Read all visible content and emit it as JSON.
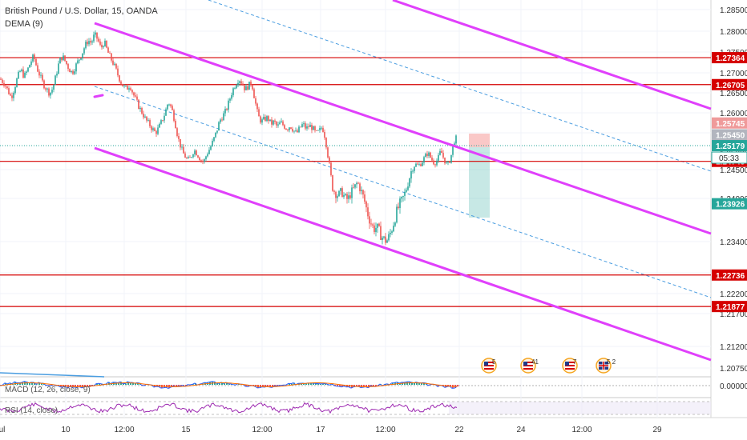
{
  "header": {
    "symbol_title": "British Pound / U.S. Dollar, 15, OANDA",
    "indicator": "DEMA (9)"
  },
  "macd_label": "MACD (12, 26, close, 9)",
  "rsi_label": "RSI (14, close)",
  "countdown": "05:33",
  "macd_zero": "0.00000",
  "colors": {
    "bull": "#26a69a",
    "bear": "#ef5350",
    "channel": "#e040fb",
    "level": "#d50000",
    "midline": "#4a9de0",
    "current": "#26a69a",
    "rsi": "#9c27b0"
  },
  "events": [
    {
      "icon": "us-flag-icon",
      "count": "5"
    },
    {
      "icon": "us-flag-icon",
      "count": "41"
    },
    {
      "icon": "us-flag-icon",
      "count": "7"
    },
    {
      "icon": "uk-flag-icon",
      "count": "5 2"
    }
  ],
  "chart_data": {
    "type": "candlestick",
    "ylim": [
      1.2016,
      1.2905
    ],
    "price_ticks": [
      "1.28500",
      "1.28000",
      "1.27500",
      "1.27000",
      "1.26500",
      "1.26000",
      "1.25500",
      "1.25000",
      "1.24500",
      "1.24000",
      "1.23400",
      "1.22800",
      "1.22200",
      "1.21700",
      "1.21200",
      "1.20750"
    ],
    "time_ticks": [
      "10",
      "12:00",
      "15",
      "12:00",
      "17",
      "12:00",
      "22",
      "24",
      "12:00",
      "29",
      "Jul"
    ],
    "levels": [
      1.27364,
      1.26705,
      1.24745,
      1.22736,
      1.21877
    ],
    "level_labels": [
      "1.27364",
      "1.26705",
      "1.24745",
      "1.22736",
      "1.21877"
    ],
    "current_price": 1.25179,
    "current_label": "1.25179",
    "tag_1_price": 1.25745,
    "tag_1_label": "1.25745",
    "tag_2_price": 1.2545,
    "tag_2_label": "1.25450",
    "target_price": 1.23926,
    "target_label": "1.23926",
    "price_path": [
      [
        0,
        1.2685
      ],
      [
        6,
        1.2672
      ],
      [
        10,
        1.2655
      ],
      [
        14,
        1.2638
      ],
      [
        18,
        1.2662
      ],
      [
        22,
        1.269
      ],
      [
        26,
        1.2708
      ],
      [
        30,
        1.269
      ],
      [
        34,
        1.2705
      ],
      [
        38,
        1.2725
      ],
      [
        42,
        1.274
      ],
      [
        46,
        1.2712
      ],
      [
        50,
        1.2692
      ],
      [
        54,
        1.2672
      ],
      [
        58,
        1.266
      ],
      [
        62,
        1.2648
      ],
      [
        66,
        1.2662
      ],
      [
        70,
        1.2695
      ],
      [
        74,
        1.2728
      ],
      [
        78,
        1.274
      ],
      [
        82,
        1.2725
      ],
      [
        86,
        1.271
      ],
      [
        90,
        1.27
      ],
      [
        94,
        1.2715
      ],
      [
        98,
        1.273
      ],
      [
        102,
        1.2745
      ],
      [
        106,
        1.2765
      ],
      [
        110,
        1.2778
      ],
      [
        114,
        1.2772
      ],
      [
        118,
        1.2792
      ],
      [
        122,
        1.278
      ],
      [
        126,
        1.2758
      ],
      [
        130,
        1.2775
      ],
      [
        134,
        1.2752
      ],
      [
        138,
        1.2735
      ],
      [
        142,
        1.272
      ],
      [
        146,
        1.27
      ],
      [
        150,
        1.268
      ],
      [
        154,
        1.2665
      ],
      [
        158,
        1.266
      ],
      [
        162,
        1.267
      ],
      [
        166,
        1.2648
      ],
      [
        170,
        1.263
      ],
      [
        174,
        1.2612
      ],
      [
        178,
        1.2598
      ],
      [
        182,
        1.2582
      ],
      [
        186,
        1.2572
      ],
      [
        190,
        1.256
      ],
      [
        194,
        1.255
      ],
      [
        198,
        1.2562
      ],
      [
        202,
        1.258
      ],
      [
        206,
        1.26
      ],
      [
        210,
        1.2628
      ],
      [
        214,
        1.2612
      ],
      [
        218,
        1.258
      ],
      [
        222,
        1.2538
      ],
      [
        226,
        1.2512
      ],
      [
        230,
        1.2492
      ],
      [
        234,
        1.2478
      ],
      [
        238,
        1.2486
      ],
      [
        242,
        1.2508
      ],
      [
        246,
        1.2496
      ],
      [
        250,
        1.248
      ],
      [
        254,
        1.2472
      ],
      [
        258,
        1.2496
      ],
      [
        262,
        1.2512
      ],
      [
        266,
        1.253
      ],
      [
        270,
        1.2552
      ],
      [
        274,
        1.258
      ],
      [
        278,
        1.2592
      ],
      [
        282,
        1.2606
      ],
      [
        286,
        1.263
      ],
      [
        290,
        1.2656
      ],
      [
        294,
        1.2672
      ],
      [
        298,
        1.2686
      ],
      [
        302,
        1.2674
      ],
      [
        306,
        1.2658
      ],
      [
        310,
        1.2668
      ],
      [
        314,
        1.2676
      ],
      [
        318,
        1.2632
      ],
      [
        322,
        1.2592
      ],
      [
        326,
        1.2578
      ],
      [
        330,
        1.2584
      ],
      [
        334,
        1.2588
      ],
      [
        338,
        1.2572
      ],
      [
        342,
        1.2578
      ],
      [
        346,
        1.2564
      ],
      [
        350,
        1.2576
      ],
      [
        354,
        1.2568
      ],
      [
        358,
        1.256
      ],
      [
        362,
        1.2568
      ],
      [
        366,
        1.2557
      ],
      [
        370,
        1.2548
      ],
      [
        374,
        1.2562
      ],
      [
        378,
        1.2572
      ],
      [
        382,
        1.256
      ],
      [
        386,
        1.2568
      ],
      [
        390,
        1.2562
      ],
      [
        394,
        1.2548
      ],
      [
        398,
        1.2553
      ],
      [
        402,
        1.2566
      ],
      [
        406,
        1.2536
      ],
      [
        410,
        1.2478
      ],
      [
        414,
        1.2422
      ],
      [
        418,
        1.241
      ],
      [
        422,
        1.2405
      ],
      [
        426,
        1.2412
      ],
      [
        430,
        1.2402
      ],
      [
        434,
        1.2398
      ],
      [
        438,
        1.241
      ],
      [
        442,
        1.2418
      ],
      [
        446,
        1.2428
      ],
      [
        450,
        1.2415
      ],
      [
        454,
        1.24
      ],
      [
        458,
        1.2382
      ],
      [
        462,
        1.2368
      ],
      [
        466,
        1.2358
      ],
      [
        470,
        1.236
      ],
      [
        474,
        1.2352
      ],
      [
        478,
        1.2344
      ],
      [
        482,
        1.234
      ],
      [
        486,
        1.2348
      ],
      [
        490,
        1.2362
      ],
      [
        494,
        1.2378
      ],
      [
        498,
        1.239
      ],
      [
        502,
        1.2398
      ],
      [
        506,
        1.2412
      ],
      [
        510,
        1.2432
      ],
      [
        514,
        1.2452
      ],
      [
        518,
        1.2466
      ],
      [
        522,
        1.2462
      ],
      [
        526,
        1.247
      ],
      [
        530,
        1.2488
      ],
      [
        534,
        1.25
      ],
      [
        538,
        1.2482
      ],
      [
        542,
        1.2468
      ],
      [
        546,
        1.248
      ],
      [
        550,
        1.2506
      ],
      [
        554,
        1.248
      ],
      [
        558,
        1.2462
      ],
      [
        562,
        1.2482
      ],
      [
        566,
        1.2528
      ],
      [
        570,
        1.2538
      ]
    ]
  }
}
